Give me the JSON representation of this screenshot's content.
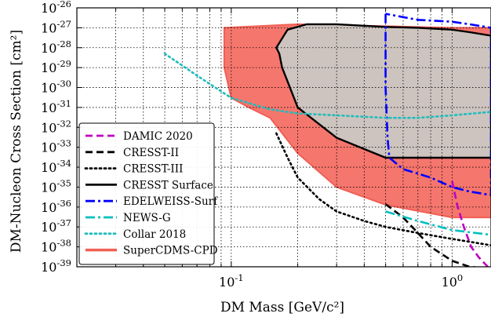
{
  "chart_data": {
    "type": "line",
    "title": "",
    "xlabel": "DM Mass [GeV/c²]",
    "ylabel": "DM-Nucleon Cross Section [cm²]",
    "xscale": "log",
    "yscale": "log",
    "xlim": [
      0.02,
      1.5
    ],
    "ylim": [
      1e-39,
      1e-26
    ],
    "grid": true,
    "legend_position": "lower-left",
    "x_tick_labels": [
      "10^-1",
      "10^0"
    ],
    "y_tick_labels": [
      "10^-39",
      "10^-38",
      "10^-37",
      "10^-36",
      "10^-35",
      "10^-34",
      "10^-33",
      "10^-32",
      "10^-31",
      "10^-30",
      "10^-29",
      "10^-28",
      "10^-27",
      "10^-26"
    ],
    "series": [
      {
        "name": "DAMIC 2020",
        "color": "#bf00bf",
        "style": "dashed",
        "x": [
          1.0,
          1.06,
          1.13,
          1.22,
          1.32,
          1.45
        ],
        "y": [
          2e-35,
          1e-36,
          1e-37,
          1e-38,
          3e-39,
          1e-39
        ]
      },
      {
        "name": "CRESST-II",
        "color": "#000000",
        "style": "dashed",
        "x": [
          0.5,
          0.6,
          0.7,
          0.8,
          1.0,
          1.2,
          1.5
        ],
        "y": [
          1.4e-36,
          3e-37,
          5e-38,
          1e-38,
          2e-39,
          1e-39,
          8e-40
        ]
      },
      {
        "name": "CRESST-III",
        "color": "#000000",
        "style": "dotted",
        "x": [
          0.16,
          0.18,
          0.2,
          0.25,
          0.3,
          0.4,
          0.5,
          0.7,
          1.0,
          1.5
        ],
        "y": [
          5e-33,
          3e-34,
          3e-35,
          2.5e-36,
          6e-37,
          2e-37,
          1e-37,
          5e-38,
          2.5e-38,
          1.2e-38
        ]
      },
      {
        "name": "CRESST Surface",
        "color": "#000000",
        "style": "solid",
        "fill": "#c9cdc8",
        "x": [
          0.16,
          0.165,
          0.17,
          0.2,
          0.3,
          0.5,
          0.7,
          1.0,
          1.2,
          1.5,
          1.5,
          1.2,
          1.0,
          0.7,
          0.5,
          0.3,
          0.22,
          0.18,
          0.16
        ],
        "y": [
          1e-28,
          5e-29,
          1e-29,
          1e-31,
          3e-33,
          3e-34,
          3e-34,
          3e-34,
          3e-34,
          3e-34,
          4e-28,
          6e-28,
          8e-28,
          1e-27,
          1.1e-27,
          1.5e-27,
          1.5e-27,
          8e-28,
          1e-28
        ]
      },
      {
        "name": "EDELWEISS-Surf",
        "color": "#0000ff",
        "style": "dashdot",
        "x": [
          0.5,
          0.5,
          0.51,
          0.52,
          0.6,
          0.8,
          1.0,
          1.2,
          1.5,
          1.5,
          1.2,
          1.0,
          0.7,
          0.5
        ],
        "y": [
          5e-27,
          1e-30,
          3e-33,
          3e-34,
          8e-35,
          3e-35,
          1e-35,
          6e-36,
          4e-36,
          1e-27,
          1.5e-27,
          2e-27,
          2.5e-27,
          5e-27
        ]
      },
      {
        "name": "NEWS-G",
        "color": "#00bfbf",
        "style": "dashdot",
        "x": [
          0.5,
          0.7,
          1.0,
          1.5
        ],
        "y": [
          6e-37,
          2e-37,
          7e-38,
          4e-38
        ]
      },
      {
        "name": "Collar 2018",
        "color": "#1fbdbd",
        "style": "dotted",
        "x": [
          0.05,
          0.07,
          0.1,
          0.15,
          0.2,
          0.3,
          0.5,
          0.7,
          1.0,
          1.5
        ],
        "y": [
          5e-29,
          4e-30,
          3e-31,
          8e-32,
          5e-32,
          4e-32,
          3e-32,
          3e-32,
          4e-32,
          6e-32
        ]
      },
      {
        "name": "SuperCDMS-CPD",
        "color": "#f15f55",
        "style": "solid",
        "fill": "#f46f65",
        "x": [
          0.093,
          0.2,
          0.5,
          1.0,
          1.5,
          1.5,
          1.0,
          0.5,
          0.3,
          0.2,
          0.15,
          0.12,
          0.1,
          0.093
        ],
        "y": [
          1e-27,
          1.5e-27,
          1.2e-27,
          1e-27,
          1e-27,
          3e-37,
          3e-37,
          1.3e-36,
          1e-35,
          5e-34,
          3e-32,
          1e-31,
          3e-31,
          1e-29
        ]
      }
    ]
  }
}
